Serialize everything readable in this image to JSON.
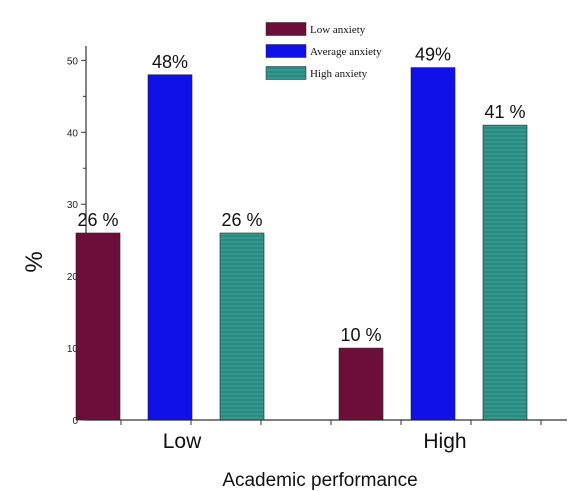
{
  "chart_data": {
    "type": "bar",
    "title": "",
    "xlabel": "Academic performance",
    "ylabel": "%",
    "ylim": [
      0,
      52
    ],
    "yticks": [
      0,
      10,
      20,
      30,
      40,
      50
    ],
    "grid": false,
    "legend_position": "top-center",
    "categories": [
      "Low",
      "High"
    ],
    "series": [
      {
        "name": "Low anxiety",
        "color": "#6b0f3a",
        "values": [
          26,
          10
        ],
        "labels": [
          "26 %",
          "10 %"
        ]
      },
      {
        "name": "Average anxiety",
        "color": "#1010e8",
        "values": [
          48,
          49
        ],
        "labels": [
          "48%",
          "49%"
        ]
      },
      {
        "name": "High anxiety",
        "color": "#2a8a82",
        "values": [
          26,
          41
        ],
        "labels": [
          "26 %",
          "41 %"
        ]
      }
    ]
  }
}
